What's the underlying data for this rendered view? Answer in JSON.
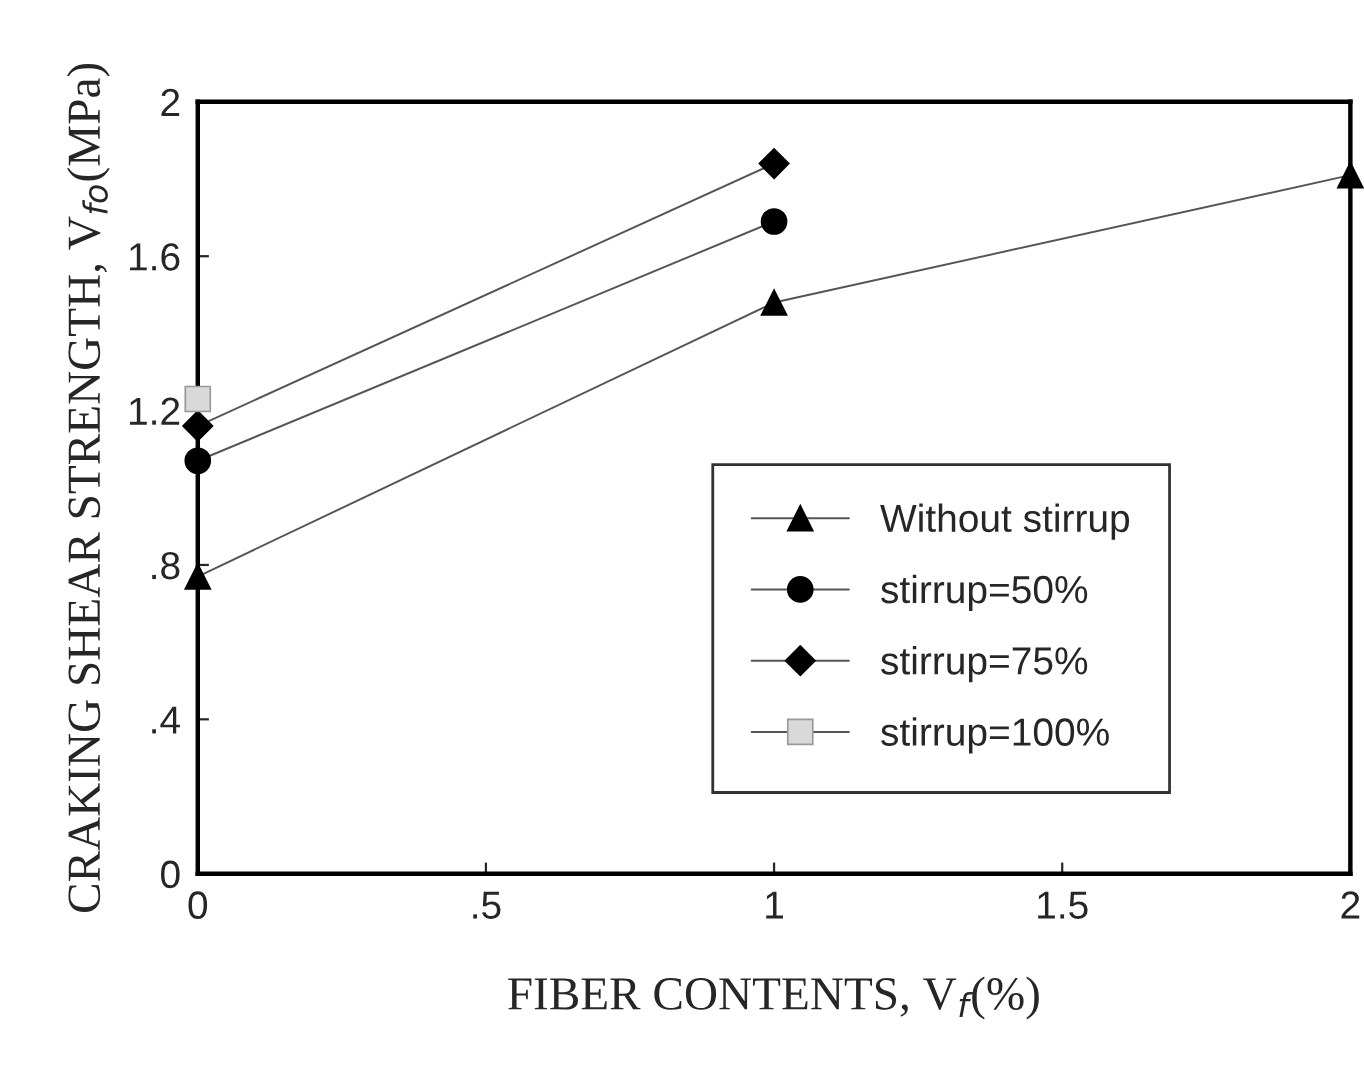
{
  "chart_data": {
    "type": "line",
    "xlabel": "FIBER CONTENTS, V$_{f}$(%)",
    "ylabel": "CRAKING SHEAR STRENGTH, V$_{fo}$(MPa)",
    "xlim": [
      0,
      2
    ],
    "ylim": [
      0,
      2
    ],
    "xticks": [
      0,
      {
        "value": 0.5,
        "label": ".5"
      },
      1,
      1.5,
      2
    ],
    "yticks": [
      0,
      {
        "value": 0.4,
        "label": ".4"
      },
      {
        "value": 0.8,
        "label": ".8"
      },
      1.2,
      1.6,
      2
    ],
    "grid": false,
    "legend": "bottom right",
    "line_style": "solid",
    "series": [
      {
        "name": "Without stirrup",
        "color": "#000000",
        "marker": "triangle",
        "x": [
          0,
          1,
          2
        ],
        "values": [
          0.77,
          1.48,
          1.81
        ]
      },
      {
        "name": "stirrup=50%",
        "color": "#000000",
        "marker": "circle",
        "x": [
          0,
          1
        ],
        "values": [
          1.07,
          1.69
        ]
      },
      {
        "name": "stirrup=75%",
        "color": "#000000",
        "marker": "diamond",
        "x": [
          0,
          1
        ],
        "values": [
          1.16,
          1.84
        ]
      },
      {
        "name": "stirrup=100%",
        "color": "#d9d9d9",
        "marker": "square",
        "x": [
          0
        ],
        "values": [
          1.23
        ]
      }
    ]
  }
}
